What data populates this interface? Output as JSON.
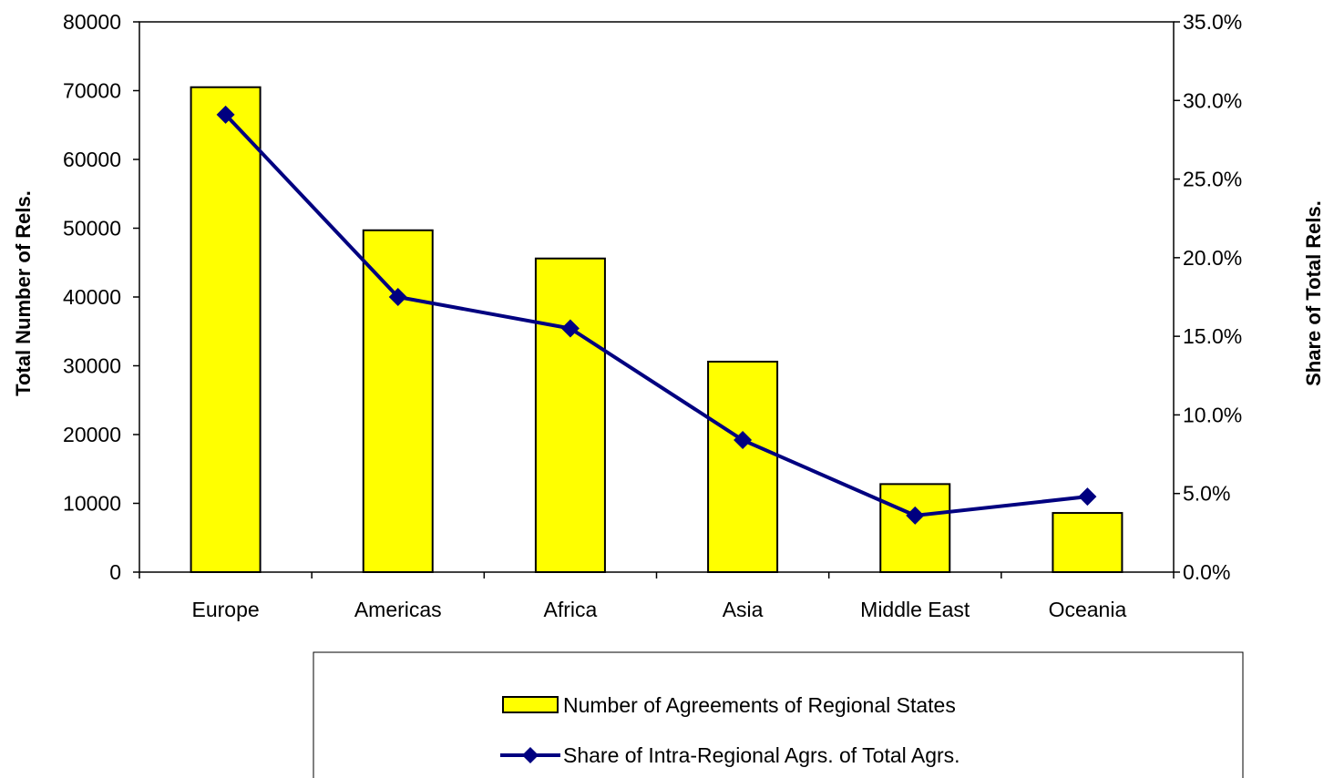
{
  "chart_data": {
    "type": "bar",
    "categories": [
      "Europe",
      "Americas",
      "Africa",
      "Asia",
      "Middle East",
      "Oceania"
    ],
    "series": [
      {
        "name": "Number of Agreements of Regional States",
        "type": "bar",
        "axis": "left",
        "values": [
          70500,
          49700,
          45600,
          30600,
          12800,
          8600
        ],
        "color": "#FFFF00"
      },
      {
        "name": "Share of Intra-Regional Agrs. of Total Agrs.",
        "type": "line",
        "axis": "right",
        "values": [
          29.1,
          17.5,
          15.5,
          8.4,
          3.6,
          4.8
        ],
        "color": "#000080"
      }
    ],
    "ylabel": "Total Number of Rels.",
    "y2label": "Share of Total Rels.",
    "ylim": [
      0,
      80000
    ],
    "y2lim": [
      0,
      35
    ],
    "yticks": [
      "0",
      "10000",
      "20000",
      "30000",
      "40000",
      "50000",
      "60000",
      "70000",
      "80000"
    ],
    "y2ticks": [
      "0.0%",
      "5.0%",
      "10.0%",
      "15.0%",
      "20.0%",
      "25.0%",
      "30.0%",
      "35.0%"
    ],
    "grid": false,
    "legend_position": "bottom"
  }
}
